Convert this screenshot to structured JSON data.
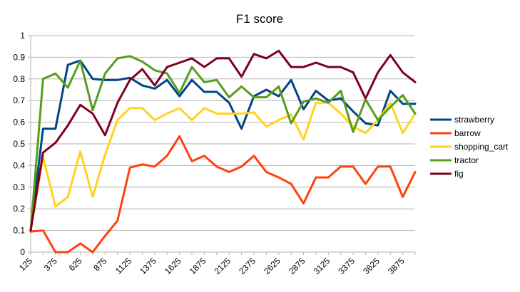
{
  "chart_data": {
    "type": "line",
    "title": "F1 score",
    "xlabel": "",
    "ylabel": "",
    "ylim": [
      0,
      1
    ],
    "yticks": [
      "0",
      "0.1",
      "0.2",
      "0.3",
      "0.4",
      "0.5",
      "0.6",
      "0.7",
      "0.8",
      "0.9",
      "1"
    ],
    "x": [
      125,
      250,
      375,
      500,
      625,
      750,
      875,
      1000,
      1125,
      1250,
      1375,
      1500,
      1625,
      1750,
      1875,
      2000,
      2125,
      2250,
      2375,
      2500,
      2625,
      2750,
      2875,
      3000,
      3125,
      3250,
      3375,
      3500,
      3625,
      3750,
      3875,
      4000
    ],
    "xtick_labels": [
      "125",
      "375",
      "625",
      "875",
      "1125",
      "1375",
      "1625",
      "1875",
      "2125",
      "2375",
      "2625",
      "2875",
      "3125",
      "3375",
      "3625",
      "3875"
    ],
    "grid": "horizontal",
    "legend_position": "right",
    "series": [
      {
        "name": "strawberry",
        "color": "#004586",
        "values": [
          0.1,
          0.57,
          0.57,
          0.865,
          0.885,
          0.8,
          0.795,
          0.795,
          0.805,
          0.77,
          0.755,
          0.795,
          0.72,
          0.795,
          0.74,
          0.74,
          0.69,
          0.57,
          0.72,
          0.75,
          0.72,
          0.795,
          0.66,
          0.745,
          0.7,
          0.71,
          0.65,
          0.595,
          0.585,
          0.745,
          0.685,
          0.685
        ]
      },
      {
        "name": "barrow",
        "color": "#FF420E",
        "values": [
          0.095,
          0.1,
          0.0,
          0.0,
          0.04,
          0.0,
          0.075,
          0.145,
          0.39,
          0.405,
          0.395,
          0.445,
          0.535,
          0.42,
          0.445,
          0.395,
          0.37,
          0.395,
          0.445,
          0.37,
          0.345,
          0.315,
          0.225,
          0.345,
          0.345,
          0.395,
          0.395,
          0.315,
          0.395,
          0.395,
          0.255,
          0.37
        ]
      },
      {
        "name": "shopping_cart",
        "color": "#FFD320",
        "values": [
          0.1,
          0.44,
          0.21,
          0.255,
          0.465,
          0.255,
          0.45,
          0.61,
          0.665,
          0.665,
          0.61,
          0.64,
          0.665,
          0.61,
          0.665,
          0.64,
          0.64,
          0.64,
          0.645,
          0.58,
          0.61,
          0.635,
          0.52,
          0.69,
          0.69,
          0.64,
          0.58,
          0.55,
          0.61,
          0.69,
          0.55,
          0.64
        ]
      },
      {
        "name": "tractor",
        "color": "#579D1C",
        "values": [
          0.1,
          0.8,
          0.825,
          0.76,
          0.885,
          0.655,
          0.825,
          0.895,
          0.905,
          0.88,
          0.84,
          0.825,
          0.735,
          0.855,
          0.785,
          0.795,
          0.715,
          0.765,
          0.715,
          0.715,
          0.765,
          0.595,
          0.695,
          0.71,
          0.69,
          0.745,
          0.555,
          0.705,
          0.61,
          0.67,
          0.725,
          0.64
        ]
      },
      {
        "name": "fig",
        "color": "#7E0021",
        "values": [
          0.1,
          0.46,
          0.505,
          0.585,
          0.68,
          0.64,
          0.54,
          0.69,
          0.795,
          0.845,
          0.77,
          0.855,
          0.875,
          0.895,
          0.855,
          0.895,
          0.895,
          0.81,
          0.915,
          0.895,
          0.93,
          0.855,
          0.855,
          0.875,
          0.855,
          0.855,
          0.83,
          0.71,
          0.83,
          0.91,
          0.83,
          0.785
        ]
      }
    ]
  }
}
